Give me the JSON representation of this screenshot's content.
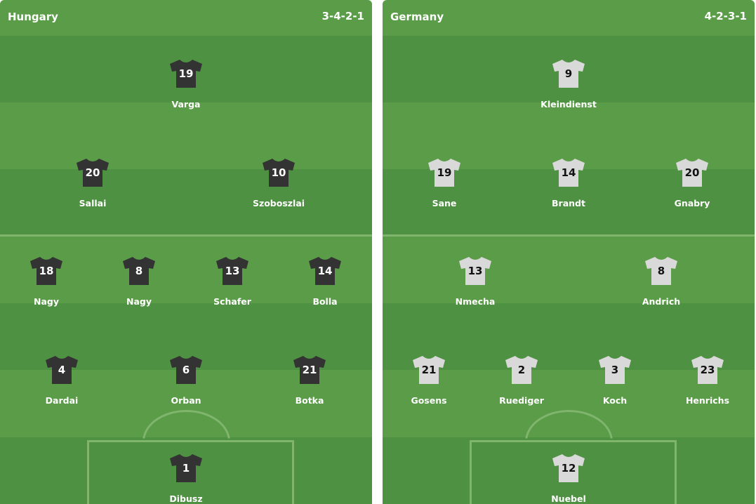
{
  "teams": [
    {
      "name": "Hungary",
      "formation": "3-4-2-1",
      "shirt_color": "#333333",
      "number_color": "#ffffff",
      "rows": [
        [
          {
            "number": "19",
            "name": "Varga"
          }
        ],
        [
          {
            "number": "20",
            "name": "Sallai"
          },
          {
            "number": "10",
            "name": "Szoboszlai"
          }
        ],
        [
          {
            "number": "18",
            "name": "Nagy"
          },
          {
            "number": "8",
            "name": "Nagy"
          },
          {
            "number": "13",
            "name": "Schafer"
          },
          {
            "number": "14",
            "name": "Bolla"
          }
        ],
        [
          {
            "number": "4",
            "name": "Dardai"
          },
          {
            "number": "6",
            "name": "Orban"
          },
          {
            "number": "21",
            "name": "Botka"
          }
        ],
        [
          {
            "number": "1",
            "name": "Dibusz"
          }
        ]
      ]
    },
    {
      "name": "Germany",
      "formation": "4-2-3-1",
      "shirt_color": "#d9d9d9",
      "number_color": "#111111",
      "rows": [
        [
          {
            "number": "9",
            "name": "Kleindienst"
          }
        ],
        [
          {
            "number": "19",
            "name": "Sane"
          },
          {
            "number": "14",
            "name": "Brandt"
          },
          {
            "number": "20",
            "name": "Gnabry"
          }
        ],
        [
          {
            "number": "13",
            "name": "Nmecha"
          },
          {
            "number": "8",
            "name": "Andrich"
          }
        ],
        [
          {
            "number": "21",
            "name": "Gosens"
          },
          {
            "number": "2",
            "name": "Ruediger"
          },
          {
            "number": "3",
            "name": "Koch"
          },
          {
            "number": "23",
            "name": "Henrichs"
          }
        ],
        [
          {
            "number": "12",
            "name": "Nuebel"
          }
        ]
      ]
    }
  ],
  "colors": {
    "pitch_light": "#5a9c47",
    "pitch_dark": "#4f9142",
    "lines": "#7fb56c"
  }
}
